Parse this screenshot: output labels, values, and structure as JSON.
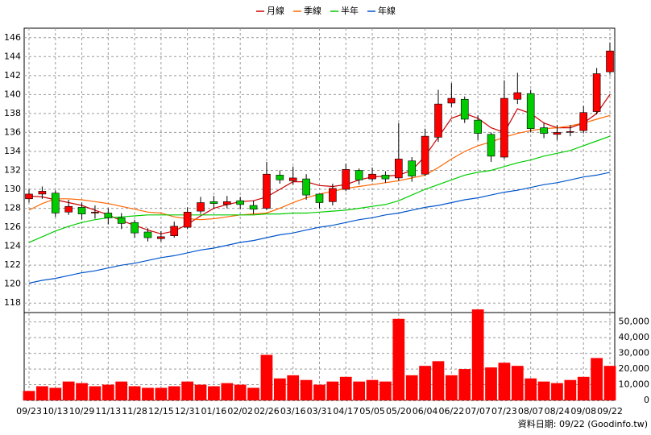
{
  "chart_data": [
    {
      "type": "candlestick",
      "categories": [
        "09/23",
        null,
        "10/13",
        null,
        "10/29",
        null,
        "11/13",
        null,
        "11/28",
        null,
        "12/15",
        null,
        "12/31",
        null,
        "01/16",
        null,
        "02/02",
        null,
        "02/26",
        null,
        "03/16",
        null,
        "03/31",
        null,
        "04/17",
        null,
        "05/05",
        null,
        "05/20",
        null,
        "06/04",
        null,
        "06/22",
        null,
        "07/07",
        null,
        "07/23",
        null,
        "08/07",
        null,
        "08/24",
        null,
        "09/08",
        null,
        "09/22"
      ],
      "open": [
        129,
        129.5,
        129.6,
        127.6,
        128.1,
        127.5,
        127.5,
        127,
        126.5,
        125.5,
        124.8,
        125.1,
        126,
        127.7,
        128.7,
        128.4,
        128.8,
        128.3,
        128,
        131.5,
        130.9,
        131.1,
        129.5,
        128.7,
        130,
        132,
        131.1,
        131.5,
        131.2,
        133,
        131.6,
        135.5,
        139.1,
        139.5,
        137.3,
        135.8,
        133.4,
        139.5,
        140.1,
        136.5,
        135.8,
        136.1,
        136.2,
        138.2,
        142.4
      ],
      "high": [
        130,
        130.3,
        129.9,
        128.9,
        128.6,
        128.3,
        128,
        127.5,
        126.8,
        125.9,
        125.6,
        126.6,
        128.1,
        129.2,
        129.3,
        129.3,
        129.2,
        128.8,
        132.9,
        132,
        132.4,
        131.6,
        129.5,
        130.6,
        132.7,
        132.2,
        132.3,
        131.9,
        137,
        133.4,
        136.4,
        140.5,
        141.2,
        139.8,
        137.8,
        136,
        141.5,
        142.3,
        140.5,
        137,
        136.8,
        136.8,
        138.8,
        142.8,
        145.5
      ],
      "low": [
        128.6,
        129,
        127.1,
        127.3,
        126.8,
        126.9,
        126.3,
        125.8,
        124.9,
        124.5,
        124.5,
        124.9,
        125.8,
        127.4,
        128,
        128,
        127.9,
        127.4,
        127.8,
        130.6,
        130.5,
        128.9,
        128,
        128.3,
        129.8,
        130.5,
        130.8,
        130.7,
        130.9,
        130.8,
        131.4,
        135,
        138.7,
        137,
        135.2,
        132.9,
        133.2,
        139,
        136,
        135.4,
        135.2,
        135.6,
        135.9,
        137.9,
        142.1
      ],
      "close": [
        129.5,
        129.8,
        127.5,
        128.2,
        127.4,
        127.6,
        127,
        126.4,
        125.4,
        124.9,
        125,
        126.1,
        127.6,
        128.6,
        128.5,
        128.7,
        128.4,
        127.9,
        131.6,
        131,
        131.2,
        129.4,
        128.6,
        130.1,
        132.1,
        131,
        131.6,
        131.1,
        133.2,
        131.4,
        135.6,
        139,
        139.6,
        137.4,
        135.9,
        133.5,
        139.6,
        140.2,
        136.4,
        135.9,
        136,
        136.1,
        138.1,
        142.2,
        144.6
      ],
      "up_color": "#ff0000",
      "down_color": "#00cc00",
      "series": [
        {
          "name": "月線",
          "color": "#cc0000",
          "values": [
            129.3,
            129.2,
            128.9,
            128.6,
            128.3,
            127.8,
            127.3,
            126.7,
            126.2,
            125.7,
            125.3,
            125.6,
            126.3,
            127.2,
            128,
            128.4,
            128.7,
            128.8,
            129.2,
            130,
            130.8,
            130.8,
            130.4,
            130.3,
            130.5,
            131,
            131.3,
            131.4,
            131.5,
            132,
            133.5,
            135.5,
            137.5,
            138,
            137.5,
            136.5,
            136,
            138.5,
            138,
            137,
            136.5,
            136.5,
            137,
            138,
            140
          ]
        },
        {
          "name": "季線",
          "color": "#ff6600",
          "values": [
            127.8,
            128.5,
            129,
            129,
            128.9,
            128.7,
            128.5,
            128.2,
            127.9,
            127.6,
            127.5,
            127.1,
            126.9,
            126.8,
            126.9,
            127.1,
            127.3,
            127.4,
            127.5,
            128,
            128.6,
            129.1,
            129.5,
            129.8,
            130.1,
            130.3,
            130.5,
            130.7,
            130.9,
            131.2,
            131.5,
            132.3,
            133.2,
            134,
            134.6,
            135,
            135.5,
            135.9,
            136.2,
            136.4,
            136.5,
            136.7,
            137,
            137.4,
            137.8
          ]
        },
        {
          "name": "半年",
          "color": "#00cc00",
          "values": [
            124.4,
            125,
            125.6,
            126.1,
            126.5,
            126.8,
            127,
            127.1,
            127.2,
            127.3,
            127.3,
            127.3,
            127.3,
            127.3,
            127.3,
            127.3,
            127.3,
            127.3,
            127.4,
            127.4,
            127.5,
            127.5,
            127.6,
            127.7,
            127.8,
            128,
            128.2,
            128.4,
            128.8,
            129.4,
            130,
            130.5,
            131,
            131.5,
            131.8,
            132,
            132.4,
            132.8,
            133.1,
            133.5,
            133.8,
            134.1,
            134.6,
            135.1,
            135.6
          ]
        },
        {
          "name": "年線",
          "color": "#0055cc",
          "values": [
            120.1,
            120.4,
            120.6,
            120.9,
            121.2,
            121.4,
            121.7,
            122,
            122.2,
            122.5,
            122.8,
            123,
            123.3,
            123.6,
            123.8,
            124.1,
            124.4,
            124.6,
            124.9,
            125.2,
            125.4,
            125.7,
            126,
            126.2,
            126.5,
            126.8,
            127,
            127.3,
            127.5,
            127.8,
            128.1,
            128.3,
            128.6,
            128.9,
            129.1,
            129.4,
            129.7,
            129.9,
            130.2,
            130.5,
            130.7,
            131,
            131.3,
            131.5,
            131.8
          ]
        }
      ],
      "legend": "top",
      "ylim": [
        117,
        147
      ],
      "yticks": [
        118,
        120,
        122,
        124,
        126,
        128,
        130,
        132,
        134,
        136,
        138,
        140,
        142,
        144,
        146
      ],
      "grid": true
    },
    {
      "type": "bar",
      "values": [
        6000,
        9000,
        8000,
        12000,
        11000,
        9000,
        10000,
        12000,
        9000,
        8000,
        8000,
        9000,
        12000,
        10000,
        9000,
        11000,
        10000,
        8000,
        29000,
        14000,
        16000,
        13000,
        10000,
        12000,
        15000,
        12000,
        13000,
        12000,
        52000,
        16000,
        22000,
        25000,
        16000,
        20000,
        58000,
        21000,
        24000,
        22000,
        14000,
        12000,
        11000,
        13000,
        15000,
        27000,
        22000
      ],
      "color": "#ff0000",
      "ylim": [
        0,
        56000
      ],
      "yticks": [
        0,
        {
          "value": 10000,
          "label": "10,000"
        },
        {
          "value": 20000,
          "label": "20,000"
        },
        {
          "value": 30000,
          "label": "30,000"
        },
        {
          "value": 40000,
          "label": "40,000"
        },
        {
          "value": 50000,
          "label": "50,000"
        }
      ],
      "yaxis": "right",
      "grid": true,
      "footer": "資料日期: 09/22 (Goodinfo.tw)"
    }
  ]
}
